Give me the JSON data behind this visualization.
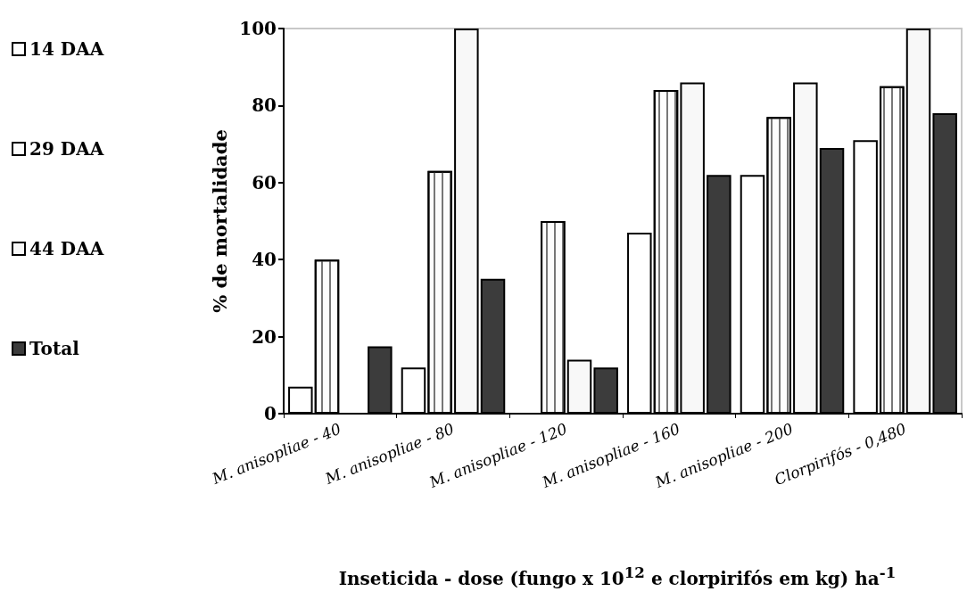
{
  "chart_data": {
    "type": "bar",
    "ylabel": "% de mortalidade",
    "xlabel": "Inseticida - dose (fungo x 10$^{12}$ e clorpirifós em kg) ha$^{-1}$",
    "categories": [
      "M. anisopliae - 40",
      "M. anisopliae - 80",
      "M. anisopliae - 120",
      "M. anisopliae - 160",
      "M. anisopliae - 200",
      "Clorpirifós - 0,480"
    ],
    "series": [
      {
        "name": "14 DAA",
        "color": "#ffffff",
        "values": [
          7,
          12,
          0,
          47,
          62,
          71
        ]
      },
      {
        "name": "29 DAA",
        "color": "#fdfdfd",
        "values": [
          40,
          63,
          50,
          84,
          77,
          85
        ]
      },
      {
        "name": "44 DAA",
        "color": "#f8f8f8",
        "values": [
          0,
          100,
          14,
          86,
          86,
          100
        ]
      },
      {
        "name": "Total",
        "color": "#3c3c3c",
        "values": [
          17.5,
          35,
          12,
          62,
          69,
          78
        ]
      }
    ],
    "ylim": [
      0,
      100
    ],
    "yticks": [
      0,
      20,
      40,
      60,
      80,
      100
    ],
    "grid": false,
    "legend": "left"
  }
}
